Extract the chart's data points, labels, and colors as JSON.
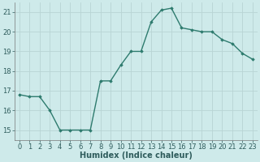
{
  "x": [
    0,
    1,
    2,
    3,
    4,
    5,
    6,
    7,
    8,
    9,
    10,
    11,
    12,
    13,
    14,
    15,
    16,
    17,
    18,
    19,
    20,
    21,
    22,
    23
  ],
  "y": [
    16.8,
    16.7,
    16.7,
    16.0,
    15.0,
    15.0,
    15.0,
    15.0,
    17.5,
    17.5,
    18.3,
    19.0,
    19.0,
    20.5,
    21.1,
    21.2,
    20.2,
    20.1,
    20.0,
    20.0,
    19.6,
    19.4,
    18.9,
    18.6
  ],
  "line_color": "#2e7b6e",
  "marker": "D",
  "markersize": 1.8,
  "linewidth": 1.0,
  "bg_color": "#ceeaea",
  "grid_color": "#b8d4d4",
  "xlabel": "Humidex (Indice chaleur)",
  "xlabel_fontsize": 7,
  "tick_fontsize": 6,
  "xlim": [
    -0.5,
    23.5
  ],
  "ylim": [
    14.5,
    21.5
  ],
  "yticks": [
    15,
    16,
    17,
    18,
    19,
    20,
    21
  ],
  "xticks": [
    0,
    1,
    2,
    3,
    4,
    5,
    6,
    7,
    8,
    9,
    10,
    11,
    12,
    13,
    14,
    15,
    16,
    17,
    18,
    19,
    20,
    21,
    22,
    23
  ]
}
